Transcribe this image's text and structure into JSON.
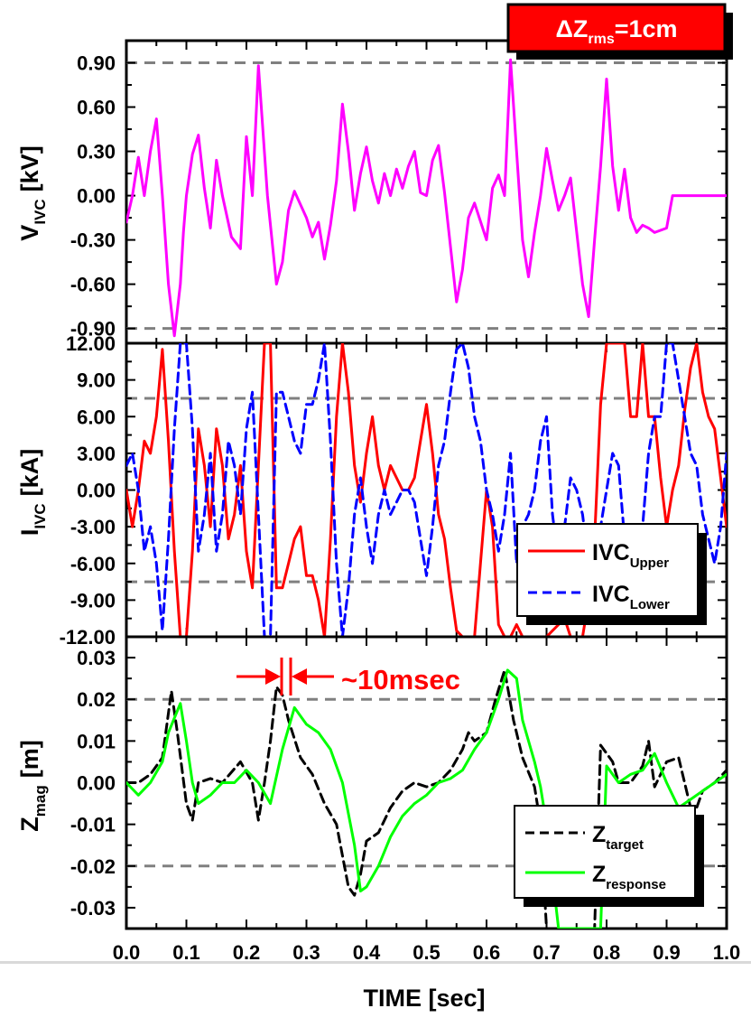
{
  "title_badge": {
    "delta": "ΔZ",
    "sub": "rms",
    "rest": "=1cm",
    "bg_color": "#ff0000"
  },
  "xaxis": {
    "label": "TIME [sec]",
    "range": [
      0.0,
      1.0
    ],
    "ticks": [
      "0.0",
      "0.1",
      "0.2",
      "0.3",
      "0.4",
      "0.5",
      "0.6",
      "0.7",
      "0.8",
      "0.9",
      "1.0"
    ]
  },
  "annotation": {
    "text": "~10msec",
    "color": "#ff0000"
  },
  "chart_data": [
    {
      "type": "line",
      "ylabel_main": "V",
      "ylabel_sub": "IVC",
      "ylabel_unit": "[kV]",
      "ylim": [
        -1.0,
        1.05
      ],
      "yticks": [
        "0.90",
        "0.60",
        "0.30",
        "0.00",
        "-0.30",
        "-0.60",
        "-0.90"
      ],
      "ytick_values": [
        0.9,
        0.6,
        0.3,
        0.0,
        -0.3,
        -0.6,
        -0.9
      ],
      "reference_lines": [
        0.9,
        -0.9
      ],
      "series": [
        {
          "color": "#ff00ff",
          "dash": "solid",
          "x": [
            0.0,
            0.01,
            0.02,
            0.03,
            0.04,
            0.05,
            0.06,
            0.07,
            0.08,
            0.09,
            0.095,
            0.1,
            0.11,
            0.12,
            0.13,
            0.14,
            0.15,
            0.16,
            0.175,
            0.19,
            0.2,
            0.21,
            0.22,
            0.235,
            0.25,
            0.26,
            0.27,
            0.28,
            0.3,
            0.31,
            0.32,
            0.33,
            0.34,
            0.35,
            0.36,
            0.37,
            0.38,
            0.39,
            0.4,
            0.41,
            0.42,
            0.43,
            0.44,
            0.45,
            0.46,
            0.47,
            0.48,
            0.49,
            0.5,
            0.51,
            0.52,
            0.53,
            0.55,
            0.56,
            0.57,
            0.58,
            0.6,
            0.61,
            0.62,
            0.63,
            0.64,
            0.65,
            0.66,
            0.67,
            0.68,
            0.69,
            0.7,
            0.71,
            0.72,
            0.73,
            0.74,
            0.76,
            0.77,
            0.78,
            0.79,
            0.8,
            0.81,
            0.82,
            0.83,
            0.84,
            0.85,
            0.86,
            0.87,
            0.88,
            0.9,
            0.91,
            0.92,
            0.93,
            0.94,
            0.95,
            0.96,
            0.97,
            0.98,
            0.99,
            1.0
          ],
          "y": [
            -0.18,
            0.0,
            0.26,
            0.0,
            0.3,
            0.52,
            0.0,
            -0.6,
            -0.95,
            -0.6,
            -0.25,
            0.0,
            0.28,
            0.41,
            0.05,
            -0.22,
            0.24,
            0.0,
            -0.28,
            -0.36,
            0.4,
            0.0,
            0.88,
            0.0,
            -0.6,
            -0.45,
            -0.1,
            0.03,
            -0.15,
            -0.28,
            -0.18,
            -0.43,
            -0.2,
            0.1,
            0.62,
            0.3,
            -0.1,
            0.15,
            0.33,
            0.1,
            -0.05,
            0.15,
            0.0,
            0.18,
            0.05,
            0.2,
            0.3,
            0.02,
            0.0,
            0.24,
            0.34,
            0.02,
            -0.72,
            -0.5,
            -0.15,
            -0.05,
            -0.3,
            0.05,
            0.14,
            0.0,
            0.92,
            0.3,
            -0.3,
            -0.55,
            -0.25,
            0.0,
            0.32,
            0.1,
            -0.1,
            0.0,
            0.12,
            -0.6,
            -0.82,
            -0.3,
            0.2,
            0.79,
            0.2,
            -0.1,
            0.18,
            -0.15,
            -0.25,
            -0.2,
            -0.22,
            -0.25,
            -0.22,
            0.0,
            0.0,
            0.0,
            0.0,
            0.0,
            0.0,
            0.0,
            0.0,
            0.0,
            0.0
          ]
        }
      ]
    },
    {
      "type": "line",
      "ylabel_main": "I",
      "ylabel_sub": "IVC",
      "ylabel_unit": "[kA]",
      "ylim": [
        -12.0,
        12.0
      ],
      "yticks": [
        "12.00",
        "9.00",
        "6.00",
        "3.00",
        "0.00",
        "-3.00",
        "-6.00",
        "-9.00",
        "-12.00"
      ],
      "ytick_values": [
        12,
        9,
        6,
        3,
        0,
        -3,
        -6,
        -9,
        -12
      ],
      "reference_lines": [
        7.5,
        -7.5
      ],
      "legend": [
        {
          "main": "IVC",
          "sub": "Upper",
          "color": "#ff0000",
          "dash": "solid"
        },
        {
          "main": "IVC",
          "sub": "Lower",
          "color": "#0000ff",
          "dash": "dashed"
        }
      ],
      "series": [
        {
          "name": "IVC Upper",
          "color": "#ff0000",
          "dash": "solid",
          "x": [
            0.0,
            0.01,
            0.02,
            0.03,
            0.04,
            0.05,
            0.06,
            0.07,
            0.08,
            0.09,
            0.1,
            0.11,
            0.12,
            0.13,
            0.14,
            0.15,
            0.16,
            0.17,
            0.18,
            0.19,
            0.2,
            0.21,
            0.22,
            0.23,
            0.24,
            0.25,
            0.26,
            0.27,
            0.28,
            0.29,
            0.3,
            0.31,
            0.32,
            0.33,
            0.34,
            0.35,
            0.36,
            0.37,
            0.38,
            0.39,
            0.4,
            0.41,
            0.42,
            0.43,
            0.44,
            0.45,
            0.46,
            0.47,
            0.48,
            0.49,
            0.5,
            0.51,
            0.52,
            0.53,
            0.54,
            0.55,
            0.56,
            0.57,
            0.58,
            0.59,
            0.6,
            0.61,
            0.62,
            0.63,
            0.64,
            0.65,
            0.66,
            0.67,
            0.68,
            0.69,
            0.7,
            0.71,
            0.72,
            0.73,
            0.74,
            0.75,
            0.76,
            0.77,
            0.78,
            0.79,
            0.8,
            0.81,
            0.82,
            0.83,
            0.84,
            0.85,
            0.86,
            0.87,
            0.88,
            0.89,
            0.9,
            0.91,
            0.92,
            0.93,
            0.94,
            0.95,
            0.96,
            0.97,
            0.98,
            0.99,
            1.0
          ],
          "y": [
            0.0,
            -3.0,
            0.0,
            4.0,
            3.0,
            6.0,
            11.5,
            4.0,
            -5.0,
            -12.0,
            -12.0,
            -5.0,
            5.0,
            2.0,
            -3.0,
            5.0,
            2.0,
            -4.0,
            -2.0,
            2.0,
            -5.0,
            -8.0,
            2.0,
            12.0,
            12.0,
            -8.0,
            -8.0,
            -6.0,
            -4.0,
            -3.0,
            -7.0,
            -7.0,
            -9.0,
            -12.0,
            -4.0,
            6.0,
            12.0,
            8.0,
            2.0,
            -1.0,
            3.0,
            6.0,
            2.0,
            0.0,
            2.0,
            1.0,
            0.0,
            0.0,
            1.0,
            4.0,
            7.0,
            3.0,
            -2.0,
            -4.0,
            -8.0,
            -11.5,
            -12.0,
            -12.0,
            -12.0,
            -6.0,
            0.0,
            -3.0,
            -11.0,
            -12.0,
            -12.0,
            -11.0,
            -12.0,
            -12.0,
            -12.0,
            -12.0,
            -12.0,
            -11.5,
            -11.0,
            -10.5,
            -12.0,
            -12.0,
            -12.0,
            -9.0,
            -4.0,
            7.0,
            12.0,
            12.0,
            12.0,
            12.0,
            6.0,
            6.0,
            12.0,
            6.0,
            6.0,
            1.0,
            -3.0,
            0.0,
            2.0,
            6.5,
            10.0,
            12.0,
            8.0,
            6.0,
            5.0,
            1.0,
            -3.0
          ]
        },
        {
          "name": "IVC Lower",
          "color": "#0000ff",
          "dash": "dashed",
          "x": [
            0.0,
            0.01,
            0.02,
            0.03,
            0.04,
            0.05,
            0.06,
            0.07,
            0.08,
            0.09,
            0.1,
            0.11,
            0.12,
            0.13,
            0.14,
            0.15,
            0.16,
            0.17,
            0.18,
            0.19,
            0.2,
            0.21,
            0.22,
            0.23,
            0.24,
            0.25,
            0.26,
            0.27,
            0.28,
            0.29,
            0.3,
            0.31,
            0.32,
            0.33,
            0.34,
            0.35,
            0.36,
            0.37,
            0.38,
            0.39,
            0.4,
            0.41,
            0.42,
            0.43,
            0.44,
            0.45,
            0.46,
            0.47,
            0.48,
            0.49,
            0.5,
            0.51,
            0.52,
            0.53,
            0.54,
            0.55,
            0.56,
            0.57,
            0.58,
            0.59,
            0.6,
            0.61,
            0.62,
            0.63,
            0.64,
            0.65,
            0.66,
            0.67,
            0.68,
            0.69,
            0.7,
            0.71,
            0.72,
            0.73,
            0.74,
            0.75,
            0.76,
            0.77,
            0.78,
            0.79,
            0.8,
            0.81,
            0.82,
            0.83,
            0.84,
            0.85,
            0.86,
            0.87,
            0.88,
            0.89,
            0.9,
            0.91,
            0.92,
            0.93,
            0.94,
            0.95,
            0.96,
            0.97,
            0.98,
            0.99,
            1.0
          ],
          "y": [
            2.0,
            3.0,
            0.0,
            -5.0,
            -3.0,
            -6.0,
            -11.5,
            -4.0,
            5.0,
            12.0,
            12.0,
            5.0,
            -5.0,
            -2.0,
            3.0,
            -5.0,
            -2.0,
            4.0,
            2.0,
            -2.0,
            5.0,
            8.0,
            -2.0,
            -12.0,
            -12.0,
            8.0,
            8.0,
            6.0,
            4.0,
            3.0,
            7.0,
            7.0,
            9.0,
            12.0,
            4.0,
            -6.0,
            -12.0,
            -8.0,
            -2.0,
            1.0,
            -3.0,
            -6.0,
            -2.0,
            0.0,
            -2.0,
            -1.0,
            0.0,
            0.0,
            -1.0,
            -4.0,
            -7.0,
            -3.0,
            2.0,
            4.0,
            8.0,
            11.5,
            12.0,
            10.0,
            6.0,
            4.0,
            0.0,
            -2.0,
            -5.0,
            -2.0,
            3.0,
            -6.0,
            -3.0,
            -2.0,
            0.0,
            4.0,
            6.0,
            -2.0,
            -6.0,
            -3.0,
            1.0,
            0.0,
            -2.0,
            -6.0,
            -4.0,
            -3.0,
            0.0,
            3.0,
            2.0,
            -4.0,
            -5.0,
            -5.0,
            -3.0,
            3.0,
            6.0,
            6.0,
            12.0,
            12.0,
            9.0,
            6.0,
            3.0,
            2.0,
            -2.0,
            -4.0,
            -6.0,
            -3.0,
            3.0
          ]
        }
      ]
    },
    {
      "type": "line",
      "ylabel_main": "Z",
      "ylabel_sub": "mag",
      "ylabel_unit": "[m]",
      "ylim": [
        -0.035,
        0.035
      ],
      "yticks": [
        "0.03",
        "0.02",
        "0.01",
        "0.00",
        "-0.01",
        "-0.02",
        "-0.03"
      ],
      "ytick_values": [
        0.03,
        0.02,
        0.01,
        0.0,
        -0.01,
        -0.02,
        -0.03
      ],
      "reference_lines": [
        0.02,
        -0.02
      ],
      "legend": [
        {
          "main": "Z",
          "sub": "target",
          "color": "#000000",
          "dash": "dashed"
        },
        {
          "main": "Z",
          "sub": "response",
          "color": "#00ff00",
          "dash": "solid"
        }
      ],
      "series": [
        {
          "name": "Z target",
          "color": "#000000",
          "dash": "dashed",
          "x": [
            0.0,
            0.02,
            0.04,
            0.06,
            0.075,
            0.085,
            0.1,
            0.11,
            0.12,
            0.14,
            0.16,
            0.19,
            0.21,
            0.22,
            0.23,
            0.24,
            0.25,
            0.26,
            0.27,
            0.29,
            0.31,
            0.33,
            0.35,
            0.37,
            0.38,
            0.39,
            0.4,
            0.42,
            0.44,
            0.46,
            0.48,
            0.5,
            0.52,
            0.54,
            0.56,
            0.57,
            0.58,
            0.6,
            0.615,
            0.63,
            0.645,
            0.66,
            0.68,
            0.69,
            0.7,
            0.72,
            0.74,
            0.77,
            0.78,
            0.79,
            0.81,
            0.82,
            0.84,
            0.86,
            0.87,
            0.88,
            0.9,
            0.92,
            0.94,
            0.95,
            0.96,
            0.98,
            1.0
          ],
          "y": [
            0.0,
            0.0,
            0.002,
            0.006,
            0.022,
            0.012,
            -0.005,
            -0.009,
            0.0,
            0.001,
            0.0,
            0.005,
            0.0,
            -0.009,
            0.0,
            0.01,
            0.023,
            0.021,
            0.015,
            0.006,
            0.002,
            -0.005,
            -0.01,
            -0.025,
            -0.027,
            -0.022,
            -0.014,
            -0.012,
            -0.006,
            -0.002,
            0.0,
            -0.001,
            0.0,
            0.003,
            0.008,
            0.012,
            0.01,
            0.012,
            0.02,
            0.027,
            0.015,
            0.006,
            -0.001,
            -0.01,
            -0.035,
            -0.035,
            -0.035,
            -0.035,
            -0.035,
            0.009,
            0.005,
            0.0,
            0.0,
            0.004,
            0.01,
            -0.001,
            0.005,
            0.006,
            -0.006,
            -0.006,
            -0.002,
            0.0,
            0.003
          ]
        },
        {
          "name": "Z response",
          "color": "#00ff00",
          "dash": "solid",
          "x": [
            0.0,
            0.02,
            0.04,
            0.06,
            0.07,
            0.09,
            0.1,
            0.11,
            0.12,
            0.14,
            0.16,
            0.18,
            0.2,
            0.22,
            0.24,
            0.26,
            0.28,
            0.29,
            0.3,
            0.32,
            0.34,
            0.36,
            0.38,
            0.39,
            0.4,
            0.42,
            0.44,
            0.46,
            0.48,
            0.5,
            0.52,
            0.54,
            0.56,
            0.58,
            0.6,
            0.62,
            0.635,
            0.65,
            0.66,
            0.68,
            0.69,
            0.7,
            0.72,
            0.74,
            0.77,
            0.78,
            0.79,
            0.8,
            0.82,
            0.84,
            0.86,
            0.88,
            0.9,
            0.92,
            0.94,
            0.96,
            0.98,
            1.0
          ],
          "y": [
            0.0,
            -0.003,
            0.0,
            0.005,
            0.012,
            0.019,
            0.01,
            0.0,
            -0.005,
            -0.003,
            0.0,
            0.0,
            0.003,
            0.0,
            -0.005,
            0.008,
            0.018,
            0.016,
            0.014,
            0.012,
            0.008,
            0.0,
            -0.015,
            -0.026,
            -0.025,
            -0.02,
            -0.013,
            -0.008,
            -0.005,
            -0.003,
            0.0,
            0.001,
            0.003,
            0.008,
            0.012,
            0.02,
            0.027,
            0.025,
            0.015,
            0.005,
            -0.001,
            -0.01,
            -0.035,
            -0.035,
            -0.035,
            -0.035,
            -0.035,
            0.004,
            0.0,
            0.002,
            0.003,
            0.007,
            0.0,
            -0.006,
            -0.004,
            -0.002,
            0.0,
            0.002
          ]
        }
      ]
    }
  ]
}
